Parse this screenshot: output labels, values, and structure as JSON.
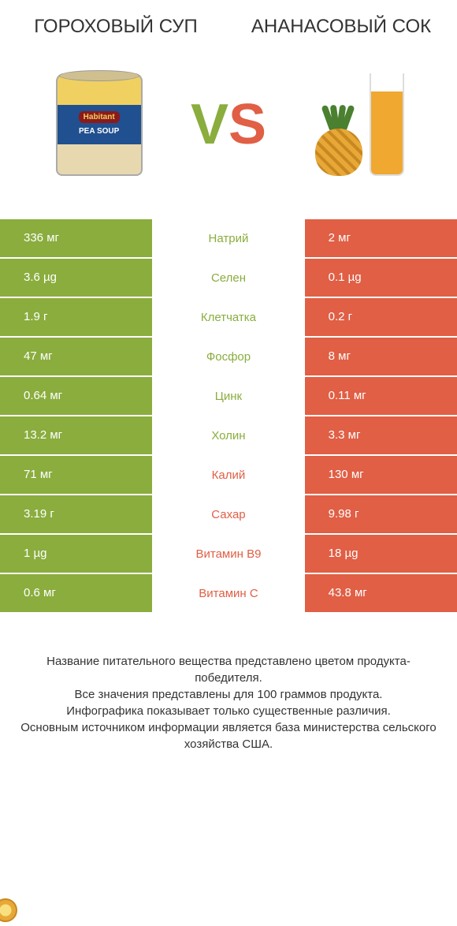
{
  "left_title": "ГОРОХОВЫЙ СУП",
  "right_title": "АНАНАСОВЫЙ СОК",
  "vs": {
    "v": "V",
    "s": "S"
  },
  "colors": {
    "left_bg": "#8aad3e",
    "right_bg": "#e05f45",
    "text_white": "#ffffff"
  },
  "rows": [
    {
      "label": "Натрий",
      "left": "336 мг",
      "right": "2 мг",
      "winner": "left"
    },
    {
      "label": "Селен",
      "left": "3.6 µg",
      "right": "0.1 µg",
      "winner": "left"
    },
    {
      "label": "Клетчатка",
      "left": "1.9 г",
      "right": "0.2 г",
      "winner": "left"
    },
    {
      "label": "Фосфор",
      "left": "47 мг",
      "right": "8 мг",
      "winner": "left"
    },
    {
      "label": "Цинк",
      "left": "0.64 мг",
      "right": "0.11 мг",
      "winner": "left"
    },
    {
      "label": "Холин",
      "left": "13.2 мг",
      "right": "3.3 мг",
      "winner": "left"
    },
    {
      "label": "Калий",
      "left": "71 мг",
      "right": "130 мг",
      "winner": "right"
    },
    {
      "label": "Сахар",
      "left": "3.19 г",
      "right": "9.98 г",
      "winner": "right"
    },
    {
      "label": "Витамин B9",
      "left": "1 µg",
      "right": "18 µg",
      "winner": "right"
    },
    {
      "label": "Витамин C",
      "left": "0.6 мг",
      "right": "43.8 мг",
      "winner": "right"
    }
  ],
  "footer_lines": [
    "Название питательного вещества представлено цветом продукта-победителя.",
    "Все значения представлены для 100 граммов продукта.",
    "Инфографика показывает только существенные различия.",
    "Основным источником информации является база министерства сельского хозяйства США."
  ],
  "can_labels": {
    "brand": "Habitant",
    "sub": "PEA SOUP"
  }
}
